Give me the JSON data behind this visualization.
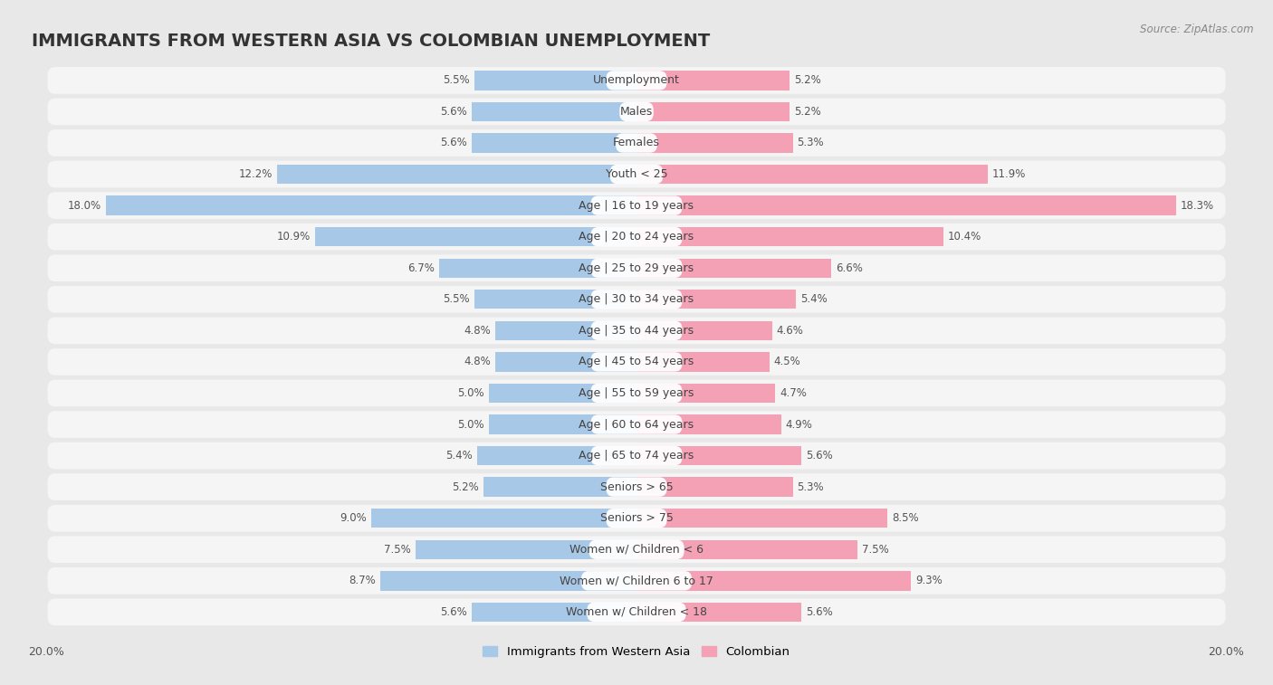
{
  "title": "IMMIGRANTS FROM WESTERN ASIA VS COLOMBIAN UNEMPLOYMENT",
  "source": "Source: ZipAtlas.com",
  "categories": [
    "Unemployment",
    "Males",
    "Females",
    "Youth < 25",
    "Age | 16 to 19 years",
    "Age | 20 to 24 years",
    "Age | 25 to 29 years",
    "Age | 30 to 34 years",
    "Age | 35 to 44 years",
    "Age | 45 to 54 years",
    "Age | 55 to 59 years",
    "Age | 60 to 64 years",
    "Age | 65 to 74 years",
    "Seniors > 65",
    "Seniors > 75",
    "Women w/ Children < 6",
    "Women w/ Children 6 to 17",
    "Women w/ Children < 18"
  ],
  "left_values": [
    5.5,
    5.6,
    5.6,
    12.2,
    18.0,
    10.9,
    6.7,
    5.5,
    4.8,
    4.8,
    5.0,
    5.0,
    5.4,
    5.2,
    9.0,
    7.5,
    8.7,
    5.6
  ],
  "right_values": [
    5.2,
    5.2,
    5.3,
    11.9,
    18.3,
    10.4,
    6.6,
    5.4,
    4.6,
    4.5,
    4.7,
    4.9,
    5.6,
    5.3,
    8.5,
    7.5,
    9.3,
    5.6
  ],
  "left_color": "#a8c8e8",
  "right_color": "#f4a0b5",
  "background_color": "#e8e8e8",
  "bar_bg_color": "#f5f5f5",
  "label_bg_color": "#ffffff",
  "max_val": 20.0,
  "left_label": "Immigrants from Western Asia",
  "right_label": "Colombian",
  "title_fontsize": 14,
  "cat_fontsize": 9,
  "value_fontsize": 8.5,
  "axis_fontsize": 9
}
